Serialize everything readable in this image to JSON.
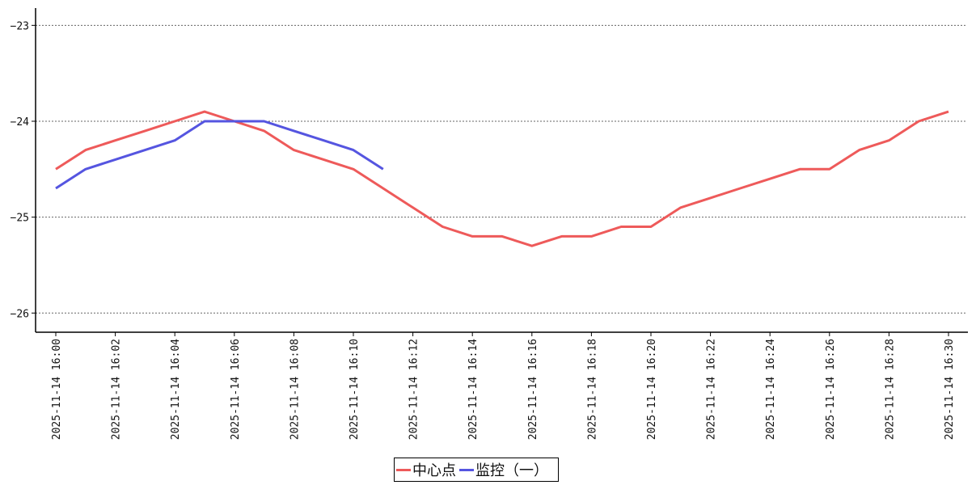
{
  "chart_data": {
    "type": "line",
    "x": [
      "2025-11-14 16:00",
      "2025-11-14 16:01",
      "2025-11-14 16:02",
      "2025-11-14 16:03",
      "2025-11-14 16:04",
      "2025-11-14 16:05",
      "2025-11-14 16:06",
      "2025-11-14 16:07",
      "2025-11-14 16:08",
      "2025-11-14 16:09",
      "2025-11-14 16:10",
      "2025-11-14 16:11",
      "2025-11-14 16:12",
      "2025-11-14 16:13",
      "2025-11-14 16:14",
      "2025-11-14 16:15",
      "2025-11-14 16:16",
      "2025-11-14 16:17",
      "2025-11-14 16:18",
      "2025-11-14 16:19",
      "2025-11-14 16:20",
      "2025-11-14 16:21",
      "2025-11-14 16:22",
      "2025-11-14 16:23",
      "2025-11-14 16:24",
      "2025-11-14 16:25",
      "2025-11-14 16:26",
      "2025-11-14 16:27",
      "2025-11-14 16:28",
      "2025-11-14 16:29",
      "2025-11-14 16:30"
    ],
    "xticks": [
      "2025-11-14 16:00",
      "2025-11-14 16:02",
      "2025-11-14 16:04",
      "2025-11-14 16:06",
      "2025-11-14 16:08",
      "2025-11-14 16:10",
      "2025-11-14 16:12",
      "2025-11-14 16:14",
      "2025-11-14 16:16",
      "2025-11-14 16:18",
      "2025-11-14 16:20",
      "2025-11-14 16:22",
      "2025-11-14 16:24",
      "2025-11-14 16:26",
      "2025-11-14 16:28",
      "2025-11-14 16:30"
    ],
    "yticks": [
      -23,
      -24,
      -25,
      -26
    ],
    "ytick_labels": [
      "−23",
      "−24",
      "−25",
      "−26"
    ],
    "ylim": [
      -26.2,
      -22.82
    ],
    "grid": "horizontal-dotted",
    "legend_position": "bottom-center",
    "series": [
      {
        "name": "中心点",
        "color": "#ee5a5a",
        "values": [
          -24.5,
          -24.3,
          -24.2,
          -24.1,
          -24.0,
          -23.9,
          -24.0,
          -24.1,
          -24.3,
          -24.4,
          -24.5,
          -24.7,
          -24.9,
          -25.1,
          -25.2,
          -25.2,
          -25.3,
          -25.2,
          -25.2,
          -25.1,
          -25.1,
          -24.9,
          -24.8,
          -24.7,
          -24.6,
          -24.5,
          -24.5,
          -24.3,
          -24.2,
          -24.0,
          -23.9
        ]
      },
      {
        "name": "监控（一）",
        "color": "#5555e0",
        "values": [
          -24.7,
          -24.5,
          -24.4,
          -24.3,
          -24.2,
          -24.0,
          -24.0,
          -24.0,
          -24.1,
          -24.2,
          -24.3,
          -24.5,
          null,
          null,
          null,
          null,
          null,
          null,
          null,
          null,
          null,
          null,
          null,
          null,
          null,
          null,
          null,
          null,
          null,
          null,
          null
        ]
      }
    ]
  }
}
